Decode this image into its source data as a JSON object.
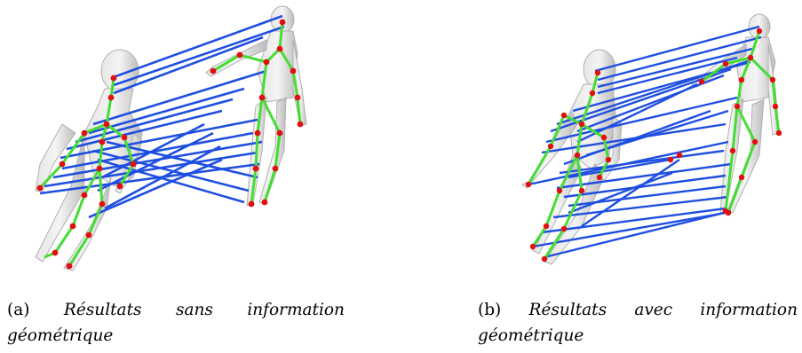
{
  "figures": [
    {
      "id": "a",
      "label": "(a)",
      "caption_line1_words": [
        "Résultats",
        "sans",
        "information"
      ],
      "caption_line2": "géométrique",
      "colors": {
        "correspondence": "#1f4fe0",
        "skeleton": "#44dd33",
        "joint": "#e01010",
        "body": "#cfcfcf"
      }
    },
    {
      "id": "b",
      "label": "(b)",
      "caption_line1_words": [
        "Résultats",
        "avec",
        "information"
      ],
      "caption_line2": "géométrique",
      "colors": {
        "correspondence": "#1f4fe0",
        "skeleton": "#44dd33",
        "joint": "#e01010",
        "body": "#cfcfcf"
      }
    }
  ]
}
